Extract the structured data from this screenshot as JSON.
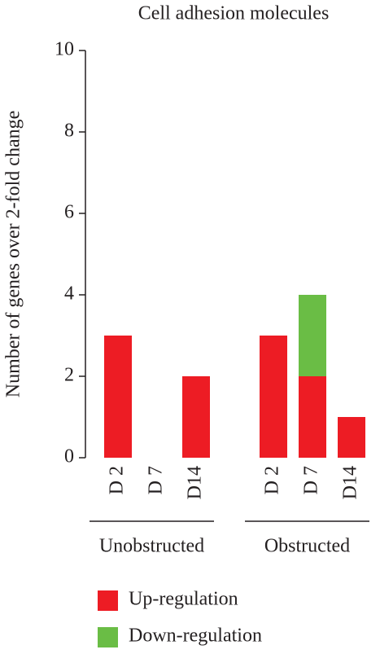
{
  "chart_data": {
    "type": "stacked_bar",
    "title": "Cell adhesion molecules",
    "y_label": "Number of genes over 2-fold change",
    "categories": [
      "D 2",
      "D 7",
      "D14",
      "D 2",
      "D 7",
      "D14"
    ],
    "groups": [
      "Unobstructed",
      "Obstructed"
    ],
    "series": [
      {
        "name": "Up-regulation",
        "color": "#ed1c24",
        "values": [
          3,
          0,
          2,
          3,
          2,
          1
        ]
      },
      {
        "name": "Down-regulation",
        "color": "#6abd45",
        "values": [
          0,
          0,
          0,
          0,
          2,
          0
        ]
      }
    ],
    "ylim": [
      0,
      10
    ],
    "yticks": [
      0,
      2,
      4,
      6,
      8,
      10
    ]
  }
}
